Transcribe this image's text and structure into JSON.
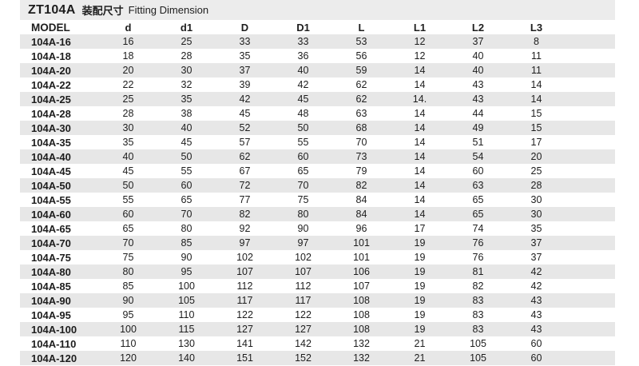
{
  "title": {
    "series": "ZT104A",
    "cjk": "装配尺寸",
    "en": "Fitting Dimension"
  },
  "table": {
    "columns": [
      "MODEL",
      "d",
      "d1",
      "D",
      "D1",
      "L",
      "L1",
      "L2",
      "L3"
    ],
    "rows": [
      [
        "104A-16",
        "16",
        "25",
        "33",
        "33",
        "53",
        "12",
        "37",
        "8"
      ],
      [
        "104A-18",
        "18",
        "28",
        "35",
        "36",
        "56",
        "12",
        "40",
        "11"
      ],
      [
        "104A-20",
        "20",
        "30",
        "37",
        "40",
        "59",
        "14",
        "40",
        "11"
      ],
      [
        "104A-22",
        "22",
        "32",
        "39",
        "42",
        "62",
        "14",
        "43",
        "14"
      ],
      [
        "104A-25",
        "25",
        "35",
        "42",
        "45",
        "62",
        "14.",
        "43",
        "14"
      ],
      [
        "104A-28",
        "28",
        "38",
        "45",
        "48",
        "63",
        "14",
        "44",
        "15"
      ],
      [
        "104A-30",
        "30",
        "40",
        "52",
        "50",
        "68",
        "14",
        "49",
        "15"
      ],
      [
        "104A-35",
        "35",
        "45",
        "57",
        "55",
        "70",
        "14",
        "51",
        "17"
      ],
      [
        "104A-40",
        "40",
        "50",
        "62",
        "60",
        "73",
        "14",
        "54",
        "20"
      ],
      [
        "104A-45",
        "45",
        "55",
        "67",
        "65",
        "79",
        "14",
        "60",
        "25"
      ],
      [
        "104A-50",
        "50",
        "60",
        "72",
        "70",
        "82",
        "14",
        "63",
        "28"
      ],
      [
        "104A-55",
        "55",
        "65",
        "77",
        "75",
        "84",
        "14",
        "65",
        "30"
      ],
      [
        "104A-60",
        "60",
        "70",
        "82",
        "80",
        "84",
        "14",
        "65",
        "30"
      ],
      [
        "104A-65",
        "65",
        "80",
        "92",
        "90",
        "96",
        "17",
        "74",
        "35"
      ],
      [
        "104A-70",
        "70",
        "85",
        "97",
        "97",
        "101",
        "19",
        "76",
        "37"
      ],
      [
        "104A-75",
        "75",
        "90",
        "102",
        "102",
        "101",
        "19",
        "76",
        "37"
      ],
      [
        "104A-80",
        "80",
        "95",
        "107",
        "107",
        "106",
        "19",
        "81",
        "42"
      ],
      [
        "104A-85",
        "85",
        "100",
        "112",
        "112",
        "107",
        "19",
        "82",
        "42"
      ],
      [
        "104A-90",
        "90",
        "105",
        "117",
        "117",
        "108",
        "19",
        "83",
        "43"
      ],
      [
        "104A-95",
        "95",
        "110",
        "122",
        "122",
        "108",
        "19",
        "83",
        "43"
      ],
      [
        "104A-100",
        "100",
        "115",
        "127",
        "127",
        "108",
        "19",
        "83",
        "43"
      ],
      [
        "104A-110",
        "110",
        "130",
        "141",
        "142",
        "132",
        "21",
        "105",
        "60"
      ],
      [
        "104A-120",
        "120",
        "140",
        "151",
        "152",
        "132",
        "21",
        "105",
        "60"
      ]
    ]
  },
  "colors": {
    "stripe": "#e7e7e7",
    "title_band": "#ececec",
    "text": "#1d1d1d",
    "background": "#ffffff"
  }
}
